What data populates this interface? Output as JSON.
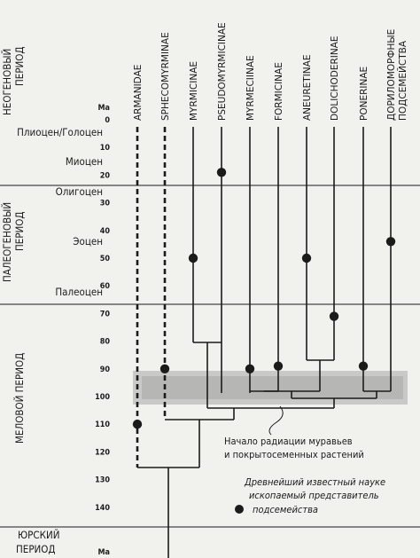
{
  "axis_unit": "Ma",
  "periods": [
    {
      "line1": "НЕОГЕНОВЫЙ",
      "line2": "ПЕРИОД"
    },
    {
      "line1": "ПАЛЕОГЕНОВЫЙ",
      "line2": "ПЕРИОД"
    },
    {
      "line1": "МЕЛОВОЙ ПЕРИОД",
      "line2": ""
    },
    {
      "line1": "ЮРСКИЙ",
      "line2": "ПЕРИОД"
    }
  ],
  "epochs": [
    "Плиоцен/Голоцен",
    "Миоцен",
    "Олигоцен",
    "Эоцен",
    "Палеоцен"
  ],
  "ticks": [
    0,
    10,
    20,
    30,
    40,
    50,
    60,
    70,
    80,
    90,
    100,
    110,
    120,
    130,
    140
  ],
  "taxa": [
    {
      "line1": "ARMANIDAE",
      "line2": "",
      "dashed": true,
      "fossil_ma": 110
    },
    {
      "line1": "SPHECOMYRMINAE",
      "line2": "",
      "dashed": true,
      "fossil_ma": 90
    },
    {
      "line1": "MYRMICINAE",
      "line2": "",
      "dashed": false,
      "fossil_ma": 50
    },
    {
      "line1": "PSEUDOMYRMICINAE",
      "line2": "",
      "dashed": false,
      "fossil_ma": 19
    },
    {
      "line1": "MYRMECIINAE",
      "line2": "",
      "dashed": false,
      "fossil_ma": 90
    },
    {
      "line1": "FORMICINAE",
      "line2": "",
      "dashed": false,
      "fossil_ma": 89
    },
    {
      "line1": "ANEURETINAE",
      "line2": "",
      "dashed": false,
      "fossil_ma": 50
    },
    {
      "line1": "DOLICHODERINAE",
      "line2": "",
      "dashed": false,
      "fossil_ma": 71
    },
    {
      "line1": "PONERINAE",
      "line2": "",
      "dashed": false,
      "fossil_ma": 89
    },
    {
      "line1": "ДОРИЛОМОРФНЫЕ",
      "line2": "ПОДСЕМЕЙСТВА",
      "dashed": false,
      "fossil_ma": 44
    }
  ],
  "annotation": {
    "line1": "Начало радиации муравьев",
    "line2": "и покрытосеменных растений"
  },
  "legend": {
    "line1": "Древнейший известный науке",
    "line2": "ископаемый представитель",
    "line3": "подсемейства"
  },
  "colors": {
    "ink": "#1b1b1b",
    "band": "#a8a8a8",
    "background": "#f1f1ee"
  }
}
